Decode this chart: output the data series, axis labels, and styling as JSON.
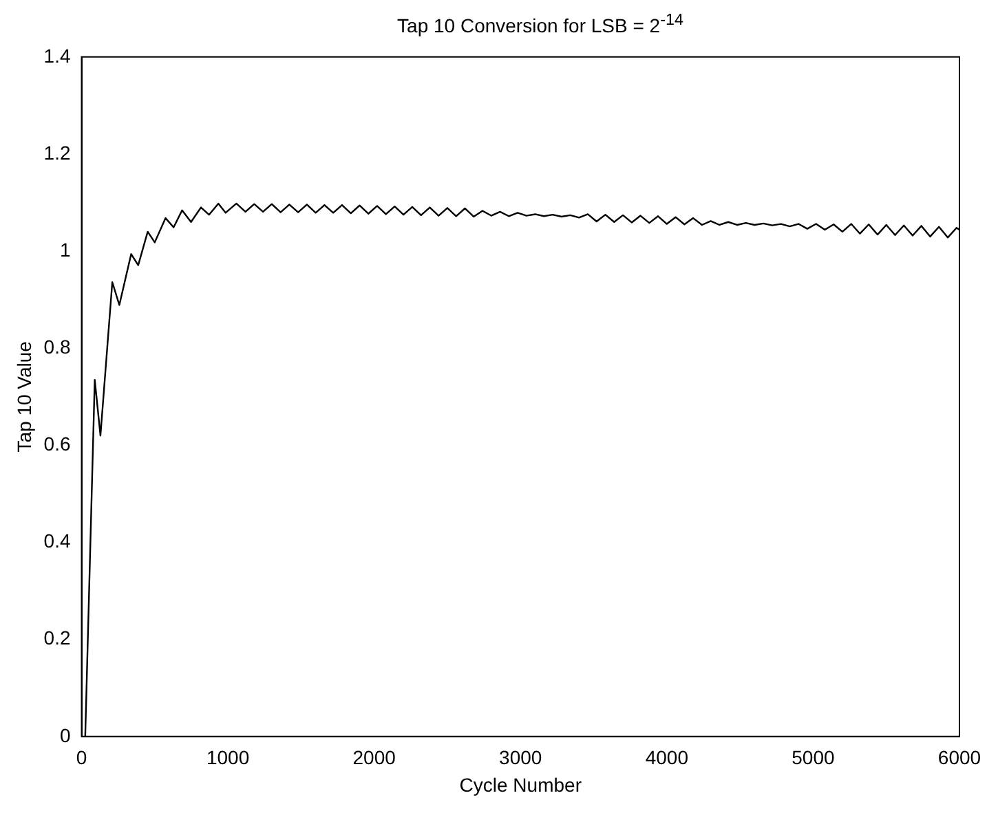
{
  "chart_data": {
    "type": "line",
    "title": "Tap 10 Conversion for LSB = 2$^{-14}$",
    "xlabel": "Cycle Number",
    "ylabel": "Tap 10 Value",
    "xlim": [
      0,
      6000
    ],
    "xticks": [
      0,
      1000,
      2000,
      3000,
      4000,
      5000,
      6000
    ],
    "ylim": [
      0,
      1.4
    ],
    "yticks": [
      0,
      0.2,
      0.4,
      0.6,
      0.8,
      1,
      1.2,
      1.4
    ],
    "grid": false,
    "legend": false,
    "marker": "none",
    "line_style": "solid",
    "series": [
      {
        "color": "#000000",
        "x": [
          25,
          90,
          129,
          210,
          258,
          339,
          387,
          452,
          500,
          574,
          629,
          687,
          748,
          816,
          871,
          935,
          984,
          1058,
          1120,
          1180,
          1240,
          1300,
          1360,
          1420,
          1480,
          1540,
          1600,
          1660,
          1720,
          1780,
          1840,
          1900,
          1960,
          2020,
          2080,
          2140,
          2200,
          2260,
          2320,
          2380,
          2440,
          2500,
          2560,
          2620,
          2680,
          2740,
          2800,
          2860,
          2920,
          2980,
          3040,
          3100,
          3160,
          3220,
          3280,
          3340,
          3400,
          3460,
          3520,
          3580,
          3640,
          3700,
          3760,
          3820,
          3880,
          3940,
          4000,
          4060,
          4120,
          4180,
          4240,
          4300,
          4360,
          4420,
          4480,
          4540,
          4600,
          4660,
          4720,
          4780,
          4840,
          4900,
          4960,
          5020,
          5080,
          5140,
          5200,
          5260,
          5320,
          5380,
          5440,
          5500,
          5560,
          5620,
          5680,
          5740,
          5800,
          5860,
          5920,
          5980,
          6000
        ],
        "values": [
          0,
          0.735,
          0.62,
          0.936,
          0.889,
          0.994,
          0.971,
          1.04,
          1.018,
          1.068,
          1.049,
          1.084,
          1.06,
          1.09,
          1.075,
          1.098,
          1.079,
          1.098,
          1.081,
          1.097,
          1.081,
          1.097,
          1.08,
          1.096,
          1.08,
          1.096,
          1.079,
          1.095,
          1.079,
          1.095,
          1.078,
          1.094,
          1.077,
          1.093,
          1.076,
          1.092,
          1.075,
          1.091,
          1.074,
          1.09,
          1.073,
          1.089,
          1.072,
          1.088,
          1.071,
          1.083,
          1.073,
          1.081,
          1.072,
          1.079,
          1.073,
          1.076,
          1.072,
          1.075,
          1.071,
          1.074,
          1.069,
          1.076,
          1.061,
          1.075,
          1.06,
          1.074,
          1.059,
          1.073,
          1.058,
          1.072,
          1.056,
          1.07,
          1.055,
          1.068,
          1.054,
          1.062,
          1.054,
          1.06,
          1.054,
          1.058,
          1.054,
          1.057,
          1.053,
          1.056,
          1.051,
          1.056,
          1.046,
          1.056,
          1.044,
          1.055,
          1.04,
          1.056,
          1.036,
          1.055,
          1.034,
          1.054,
          1.033,
          1.053,
          1.032,
          1.052,
          1.03,
          1.05,
          1.028,
          1.048,
          1.044
        ]
      }
    ]
  }
}
